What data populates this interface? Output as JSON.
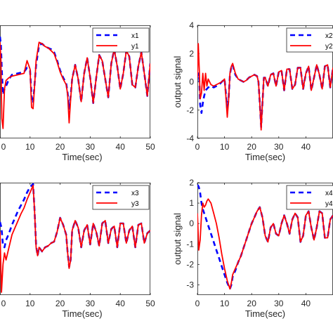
{
  "chart_data": [
    {
      "type": "line",
      "xlabel": "Time(sec)",
      "ylabel": "",
      "xlim": [
        0,
        50
      ],
      "ylim": [
        -4,
        4
      ],
      "xticks": [
        "0",
        "10",
        "20",
        "30",
        "40",
        "50"
      ],
      "yticks": [],
      "legend_position": "top-right",
      "series": [
        {
          "name": "x1",
          "color": "#0000ff",
          "style": "dashed",
          "x": [
            0,
            0.3,
            0.6,
            1,
            1.5,
            2,
            3,
            4,
            6,
            8,
            9,
            10,
            10.5,
            11,
            11.5,
            12,
            13,
            14,
            15,
            16,
            17,
            18,
            19,
            20,
            21,
            22,
            22.5,
            23,
            23.5,
            24,
            25,
            26,
            27,
            28,
            29,
            30,
            31,
            32,
            33,
            34,
            35,
            36,
            37,
            38,
            39,
            40,
            41,
            42,
            43,
            44,
            45,
            46,
            47,
            48,
            49,
            50
          ],
          "y": [
            3.2,
            2.6,
            0.8,
            -0.9,
            -0.5,
            -0.3,
            0.2,
            0.5,
            0.6,
            0.7,
            1.0,
            0.8,
            -1.0,
            -1.5,
            -0.2,
            1.2,
            2.6,
            2.7,
            2.5,
            2.4,
            2.3,
            2.1,
            1.5,
            0.8,
            0.3,
            -0.1,
            -0.8,
            -1.9,
            -1.0,
            0.2,
            1.2,
            0.2,
            -1.4,
            0.6,
            1.7,
            0.3,
            -1.5,
            0.3,
            1.9,
            1.5,
            0.2,
            -1.1,
            1.3,
            2.3,
            1.1,
            -0.5,
            0.6,
            2.2,
            1.8,
            -0.2,
            -0.4,
            1.1,
            2.1,
            0.6,
            -1.0,
            1.3
          ]
        },
        {
          "name": "y1",
          "color": "#ff0000",
          "style": "solid",
          "x": [
            0,
            0.3,
            0.6,
            1,
            1.5,
            2,
            3,
            4,
            6,
            8,
            9,
            10,
            10.5,
            11,
            11.5,
            12,
            13,
            14,
            15,
            16,
            17,
            18,
            19,
            20,
            21,
            22,
            22.5,
            23,
            23.5,
            24,
            25,
            26,
            27,
            28,
            29,
            30,
            31,
            32,
            33,
            34,
            35,
            36,
            37,
            38,
            39,
            40,
            41,
            42,
            43,
            44,
            45,
            46,
            47,
            48,
            49,
            50
          ],
          "y": [
            2.8,
            1.5,
            -2.6,
            -3.3,
            -0.5,
            0.1,
            0.3,
            0.4,
            0.5,
            0.6,
            1.5,
            0.9,
            -1.8,
            -1.9,
            -0.3,
            1.5,
            2.8,
            2.7,
            2.5,
            2.4,
            2.2,
            2.0,
            1.4,
            0.7,
            0.2,
            -0.2,
            -0.9,
            -2.9,
            -1.2,
            0.2,
            1.2,
            0.2,
            -1.4,
            0.6,
            1.7,
            0.3,
            -1.5,
            0.3,
            1.9,
            1.5,
            0.2,
            -1.1,
            1.3,
            2.3,
            1.1,
            -0.5,
            0.6,
            2.2,
            1.8,
            -0.2,
            -0.4,
            1.1,
            2.1,
            0.6,
            -1.0,
            1.3
          ]
        }
      ]
    },
    {
      "type": "line",
      "xlabel": "Time(sec)",
      "ylabel": "output signal",
      "xlim": [
        0,
        50
      ],
      "ylim": [
        -4,
        4
      ],
      "xticks": [
        "0",
        "10",
        "20",
        "30",
        "40"
      ],
      "yticks": [
        "-4",
        "-2",
        "0",
        "2",
        "4"
      ],
      "legend_position": "top-right",
      "series": [
        {
          "name": "x2",
          "color": "#0000ff",
          "style": "dashed",
          "x": [
            0,
            0.3,
            0.7,
            1,
            1.5,
            2,
            2.5,
            3,
            4,
            5,
            6,
            7,
            8,
            9,
            10,
            10.5,
            11,
            11.5,
            12,
            12.5,
            13,
            14,
            15,
            16,
            17,
            18,
            19,
            20,
            21,
            22,
            22.5,
            23,
            23.5,
            24,
            24.5,
            25,
            26,
            27,
            28,
            29,
            30,
            31,
            32,
            33,
            34,
            35,
            36,
            37,
            38,
            39,
            40,
            41,
            42,
            43,
            44,
            45,
            46,
            47,
            48,
            49,
            50
          ],
          "y": [
            0.3,
            0.6,
            0.2,
            -1.6,
            -2.2,
            -1.5,
            -1.0,
            -0.6,
            -0.4,
            -0.3,
            -0.4,
            -0.3,
            -0.2,
            0.0,
            0.2,
            -0.8,
            -2.0,
            -1.2,
            0.5,
            1.1,
            1.2,
            0.5,
            0.2,
            0.1,
            0.0,
            0.1,
            0.3,
            0.4,
            0.5,
            0.4,
            0.0,
            -1.5,
            -3.2,
            -1.5,
            0.3,
            0.3,
            -0.3,
            0.5,
            0.6,
            -0.3,
            0.7,
            0.8,
            -0.6,
            0.9,
            0.9,
            -0.5,
            -0.2,
            1.0,
            1.0,
            -0.5,
            0.6,
            1.1,
            -0.6,
            0.3,
            1.2,
            0.5,
            -0.5,
            1.1,
            1.2,
            -0.4,
            1.0
          ]
        },
        {
          "name": "y2",
          "color": "#ff0000",
          "style": "solid",
          "x": [
            0,
            0.3,
            0.7,
            1,
            1.5,
            2,
            2.5,
            3,
            3.5,
            4,
            5,
            6,
            7,
            8,
            9,
            10,
            10.5,
            11,
            11.5,
            12,
            12.5,
            13,
            14,
            15,
            16,
            17,
            18,
            19,
            20,
            21,
            22,
            22.5,
            23,
            23.5,
            24,
            24.5,
            25,
            26,
            27,
            28,
            29,
            30,
            31,
            32,
            33,
            34,
            35,
            36,
            37,
            38,
            39,
            40,
            41,
            42,
            43,
            44,
            45,
            46,
            47,
            48,
            49,
            50
          ],
          "y": [
            0.3,
            2.7,
            0.8,
            -1.2,
            -0.8,
            0.6,
            -0.6,
            0.6,
            -0.3,
            0.2,
            -0.2,
            -0.3,
            -0.2,
            -0.1,
            0.0,
            0.2,
            -1.0,
            -2.5,
            -1.3,
            0.6,
            1.1,
            1.3,
            0.6,
            0.2,
            0.1,
            0.0,
            0.1,
            0.3,
            0.4,
            0.5,
            0.4,
            0.0,
            -1.5,
            -3.4,
            -1.5,
            0.3,
            0.3,
            -0.3,
            0.5,
            0.6,
            -0.3,
            0.7,
            0.8,
            -0.6,
            0.9,
            0.9,
            -0.5,
            -0.2,
            1.0,
            1.0,
            -0.5,
            0.6,
            1.1,
            -0.6,
            0.3,
            1.2,
            0.5,
            -0.5,
            1.1,
            1.2,
            -0.4,
            1.0
          ]
        }
      ]
    },
    {
      "type": "line",
      "xlabel": "Time(sec)",
      "ylabel": "",
      "xlim": [
        0,
        50
      ],
      "ylim": [
        -4,
        4
      ],
      "xticks": [
        "0",
        "10",
        "20",
        "30",
        "40",
        "50"
      ],
      "yticks": [],
      "legend_position": "top-right",
      "series": [
        {
          "name": "x3",
          "color": "#0000ff",
          "style": "dashed",
          "x": [
            0,
            0.5,
            1,
            1.5,
            2,
            3,
            4,
            5,
            6,
            7,
            8,
            9,
            10,
            11,
            11.5,
            12,
            12.5,
            13,
            14,
            15,
            16,
            17,
            18,
            19,
            20,
            21,
            22,
            22.5,
            23,
            23.5,
            24,
            25,
            26,
            27,
            28,
            29,
            30,
            31,
            32,
            33,
            34,
            35,
            36,
            37,
            38,
            39,
            40,
            41,
            42,
            43,
            44,
            45,
            46,
            47,
            48,
            49,
            50
          ],
          "y": [
            1.2,
            0.8,
            -0.5,
            -0.6,
            -0.1,
            0.4,
            1.0,
            1.5,
            2.0,
            2.4,
            2.8,
            3.3,
            3.7,
            3.9,
            2.0,
            -0.5,
            -1.2,
            -0.6,
            -0.9,
            -0.6,
            -0.5,
            -0.3,
            -0.2,
            0.5,
            1.5,
            1.0,
            0.3,
            -1.0,
            -2.0,
            -1.5,
            0.6,
            1.3,
            0.8,
            -0.6,
            0.6,
            1.0,
            -0.4,
            1.1,
            0.5,
            -0.5,
            1.1,
            1.3,
            -0.3,
            0.7,
            0.9,
            -0.6,
            1.1,
            1.1,
            -0.3,
            0.6,
            0.9,
            -0.6,
            1.0,
            1.1,
            -0.3,
            0.4,
            0.6
          ]
        },
        {
          "name": "y3",
          "color": "#ff0000",
          "style": "solid",
          "x": [
            0,
            0.5,
            1,
            1.5,
            2,
            3,
            4,
            5,
            6,
            7,
            8,
            9,
            10,
            11,
            11.5,
            12,
            12.5,
            13,
            14,
            15,
            16,
            17,
            18,
            19,
            20,
            21,
            22,
            22.5,
            23,
            23.5,
            24,
            25,
            26,
            27,
            28,
            29,
            30,
            31,
            32,
            33,
            34,
            35,
            36,
            37,
            38,
            39,
            40,
            41,
            42,
            43,
            44,
            45,
            46,
            47,
            48,
            49,
            50
          ],
          "y": [
            0.5,
            -3.8,
            -1.8,
            -1.0,
            -1.5,
            -0.6,
            0.3,
            0.8,
            1.3,
            1.8,
            2.2,
            2.8,
            3.3,
            3.8,
            2.0,
            -0.6,
            -1.2,
            -0.6,
            -0.9,
            -0.6,
            -0.5,
            -0.3,
            -0.2,
            0.5,
            1.5,
            1.0,
            0.3,
            -1.0,
            -2.1,
            -1.5,
            0.6,
            1.3,
            0.8,
            -0.6,
            0.6,
            1.0,
            -0.4,
            1.1,
            0.5,
            -0.5,
            1.1,
            1.3,
            -0.3,
            0.7,
            0.9,
            -0.6,
            1.1,
            1.1,
            -0.3,
            0.6,
            0.9,
            -0.6,
            1.0,
            1.1,
            -0.3,
            0.4,
            0.6
          ]
        }
      ]
    },
    {
      "type": "line",
      "xlabel": "Time(sec)",
      "ylabel": "output signal",
      "xlim": [
        0,
        50
      ],
      "ylim": [
        -3.5,
        2
      ],
      "xticks": [
        "0",
        "10",
        "20",
        "30",
        "40"
      ],
      "yticks": [
        "-3",
        "-2",
        "-1",
        "0",
        "1",
        "2"
      ],
      "legend_position": "top-right",
      "series": [
        {
          "name": "x4",
          "color": "#0000ff",
          "style": "dashed",
          "x": [
            0,
            0.5,
            1,
            1.5,
            2,
            3,
            4,
            5,
            6,
            7,
            8,
            9,
            10,
            11,
            12,
            12.5,
            13,
            14,
            15,
            16,
            17,
            18,
            19,
            20,
            21,
            22,
            23,
            24,
            25,
            26,
            27,
            28,
            29,
            30,
            31,
            32,
            33,
            34,
            35,
            36,
            37,
            38,
            39,
            40,
            41,
            42,
            43,
            44,
            45,
            46,
            47,
            48,
            49,
            50
          ],
          "y": [
            1.9,
            1.8,
            1.5,
            1.0,
            0.7,
            0.3,
            -0.1,
            -0.5,
            -0.9,
            -1.3,
            -1.7,
            -2.1,
            -2.5,
            -2.9,
            -3.2,
            -3.0,
            -2.6,
            -2.3,
            -1.9,
            -1.6,
            -1.2,
            -0.8,
            -0.4,
            0.0,
            0.3,
            0.6,
            0.8,
            0.3,
            -0.6,
            -0.9,
            -0.2,
            0.0,
            -0.5,
            -0.6,
            0.0,
            0.4,
            0.0,
            -0.5,
            0.2,
            0.5,
            0.3,
            -0.9,
            -0.6,
            0.4,
            0.6,
            -0.2,
            -0.8,
            -0.2,
            0.6,
            0.5,
            -0.7,
            -0.7,
            0.2,
            0.4
          ]
        },
        {
          "name": "y4",
          "color": "#ff0000",
          "style": "solid",
          "x": [
            0,
            0.5,
            1,
            1.5,
            2,
            2.5,
            3,
            3.5,
            4,
            5,
            6,
            7,
            8,
            9,
            10,
            11,
            12,
            12.5,
            13,
            14,
            15,
            16,
            17,
            18,
            19,
            20,
            21,
            22,
            23,
            24,
            25,
            26,
            27,
            28,
            29,
            30,
            31,
            32,
            33,
            34,
            35,
            36,
            37,
            38,
            39,
            40,
            41,
            42,
            43,
            44,
            45,
            46,
            47,
            48,
            49,
            50
          ],
          "y": [
            0.5,
            -1.3,
            -0.8,
            0.4,
            1.0,
            0.8,
            0.9,
            1.1,
            1.2,
            1.0,
            0.5,
            0.0,
            -0.7,
            -1.5,
            -2.2,
            -2.8,
            -3.2,
            -2.9,
            -2.5,
            -2.2,
            -1.9,
            -1.6,
            -1.2,
            -0.8,
            -0.4,
            0.0,
            0.3,
            0.6,
            0.8,
            0.3,
            -0.6,
            -0.9,
            -0.2,
            0.0,
            -0.5,
            -0.6,
            0.0,
            0.4,
            0.0,
            -0.5,
            0.2,
            0.5,
            0.3,
            -0.9,
            -0.6,
            0.4,
            0.6,
            -0.2,
            -0.8,
            -0.2,
            0.6,
            0.5,
            -0.7,
            -0.7,
            0.2,
            0.4
          ]
        }
      ]
    }
  ]
}
